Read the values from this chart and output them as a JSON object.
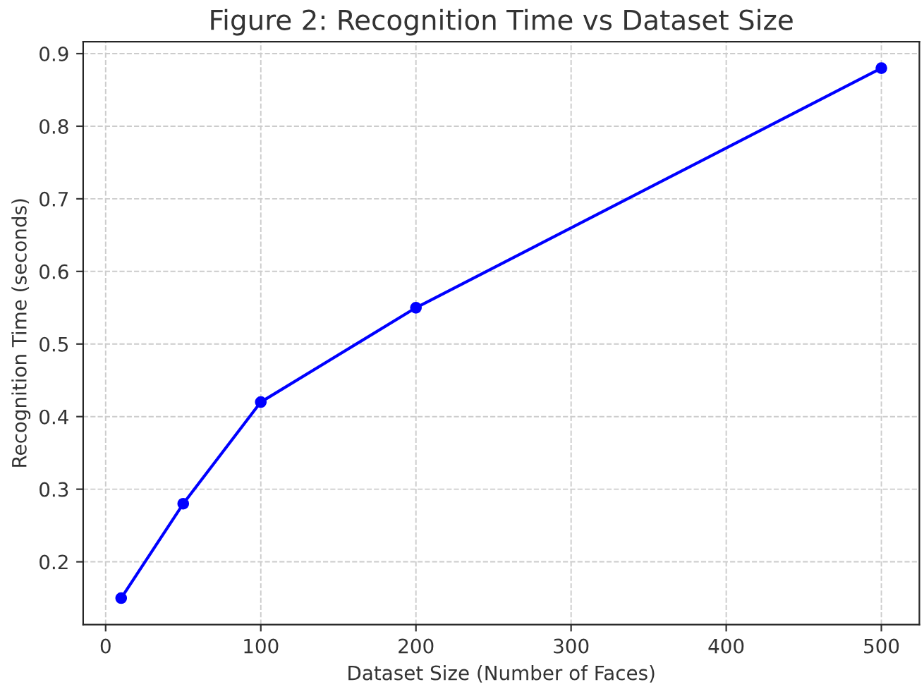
{
  "chart_data": {
    "type": "line",
    "title": "Figure 2: Recognition Time vs Dataset Size",
    "xlabel": "Dataset Size (Number of Faces)",
    "ylabel": "Recognition Time (seconds)",
    "x": [
      10,
      50,
      100,
      200,
      500
    ],
    "series": [
      {
        "color": "#0000ff",
        "values": [
          0.15,
          0.28,
          0.42,
          0.55,
          0.88
        ]
      }
    ],
    "xlim": [
      -14.5,
      524.5
    ],
    "xticks": [
      0,
      100,
      200,
      300,
      400,
      500
    ],
    "ylim": [
      0.1135,
      0.9165
    ],
    "yticks": [
      0.2,
      0.3,
      0.4,
      0.5,
      0.6,
      0.7,
      0.8,
      0.9
    ],
    "grid": true,
    "marker": "circle",
    "line_style": "solid"
  }
}
